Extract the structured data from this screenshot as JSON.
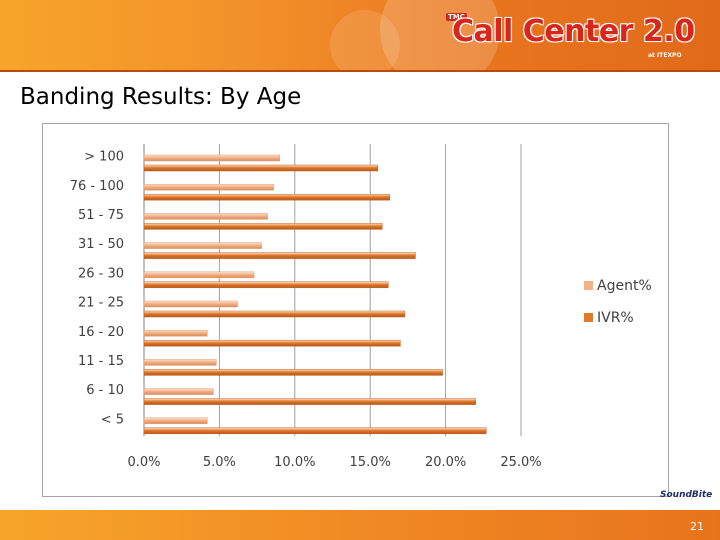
{
  "header": {
    "logo_badge": "TMC",
    "logo_text": "Call Center 2.0",
    "logo_sub": "at ITEXPO"
  },
  "slide_title": "Banding Results: By Age",
  "footer": {
    "page_number": "21",
    "partner_logo": "SoundBite"
  },
  "colors": {
    "agent": "#f4b183",
    "ivr": "#e07a2a",
    "header": "#f2902a"
  },
  "chart_data": {
    "type": "bar",
    "orientation": "horizontal",
    "categories": [
      "> 100",
      "76 - 100",
      "51 - 75",
      "31 - 50",
      "26 - 30",
      "21 - 25",
      "16 - 20",
      "11 - 15",
      "6 - 10",
      "< 5"
    ],
    "series": [
      {
        "name": "Agent%",
        "values": [
          9.0,
          8.6,
          8.2,
          7.8,
          7.3,
          6.2,
          4.2,
          4.8,
          4.6,
          4.2
        ]
      },
      {
        "name": "IVR%",
        "values": [
          15.5,
          16.3,
          15.8,
          18.0,
          16.2,
          17.3,
          17.0,
          19.8,
          22.0,
          22.7
        ]
      }
    ],
    "xlim": [
      0,
      25
    ],
    "xticks": [
      "0.0%",
      "5.0%",
      "10.0%",
      "15.0%",
      "20.0%",
      "25.0%"
    ],
    "grid": true,
    "legend": "right"
  }
}
